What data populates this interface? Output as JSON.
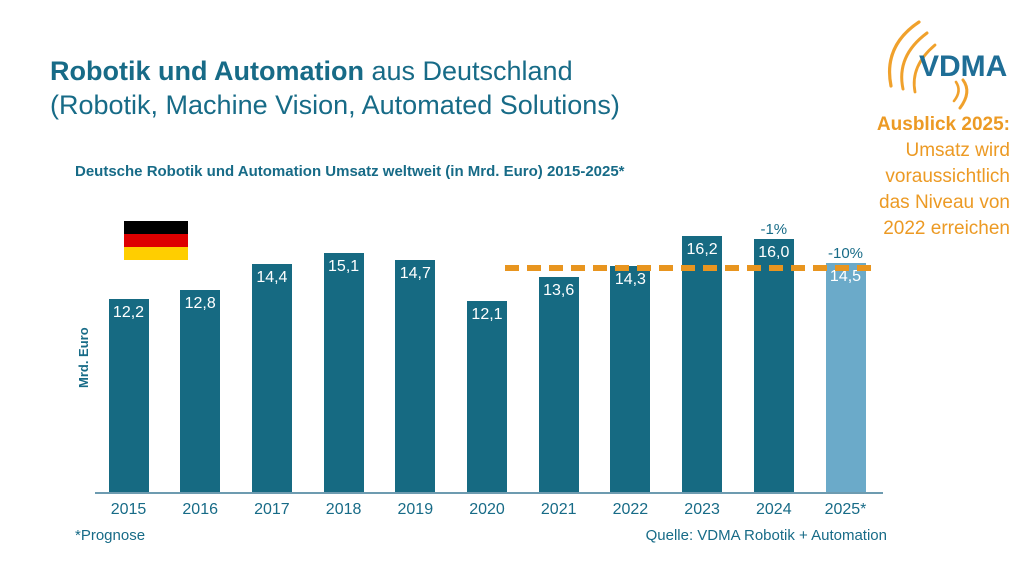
{
  "colors": {
    "teal_text": "#176B87",
    "bar": "#166A82",
    "forecast_bar": "#6BAAC9",
    "orange": "#EC9A24",
    "logo_blue": "#1F6E96",
    "axis_line": "#6D9BB0",
    "flag_black": "#000000",
    "flag_red": "#DD0000",
    "flag_gold": "#FFCE00"
  },
  "header": {
    "title_bold": "Robotik und Automation",
    "title_rest": " aus Deutschland",
    "title_line2": "(Robotik, Machine Vision, Automated Solutions)"
  },
  "logo": {
    "text": "VDMA"
  },
  "callout": {
    "heading": "Ausblick 2025:",
    "lines": [
      "Umsatz wird",
      "voraussichtlich",
      "das Niveau von",
      "2022 erreichen"
    ]
  },
  "chart_data": {
    "type": "bar",
    "title": "Deutsche Robotik und Automation Umsatz weltweit (in Mrd. Euro) 2015-2025*",
    "xlabel": "",
    "ylabel": "Mrd. Euro",
    "ylim": [
      0,
      17
    ],
    "grid": false,
    "categories": [
      "2015",
      "2016",
      "2017",
      "2018",
      "2019",
      "2020",
      "2021",
      "2022",
      "2023",
      "2024",
      "2025*"
    ],
    "values": [
      12.2,
      12.8,
      14.4,
      15.1,
      14.7,
      12.1,
      13.6,
      14.3,
      16.2,
      16.0,
      14.5
    ],
    "value_labels": [
      "12,2",
      "12,8",
      "14,4",
      "15,1",
      "14,7",
      "12,1",
      "13,6",
      "14,3",
      "16,2",
      "16,0",
      "14,5"
    ],
    "forecast_index": 10,
    "annotations": [
      {
        "index": 9,
        "label": "-1%"
      },
      {
        "index": 10,
        "label": "-10%"
      }
    ],
    "reference_line": {
      "level": 14.3,
      "style": "dashed",
      "meaning": "Niveau von 2022"
    }
  },
  "footer": {
    "left": "*Prognose",
    "right": "Quelle: VDMA Robotik + Automation"
  }
}
